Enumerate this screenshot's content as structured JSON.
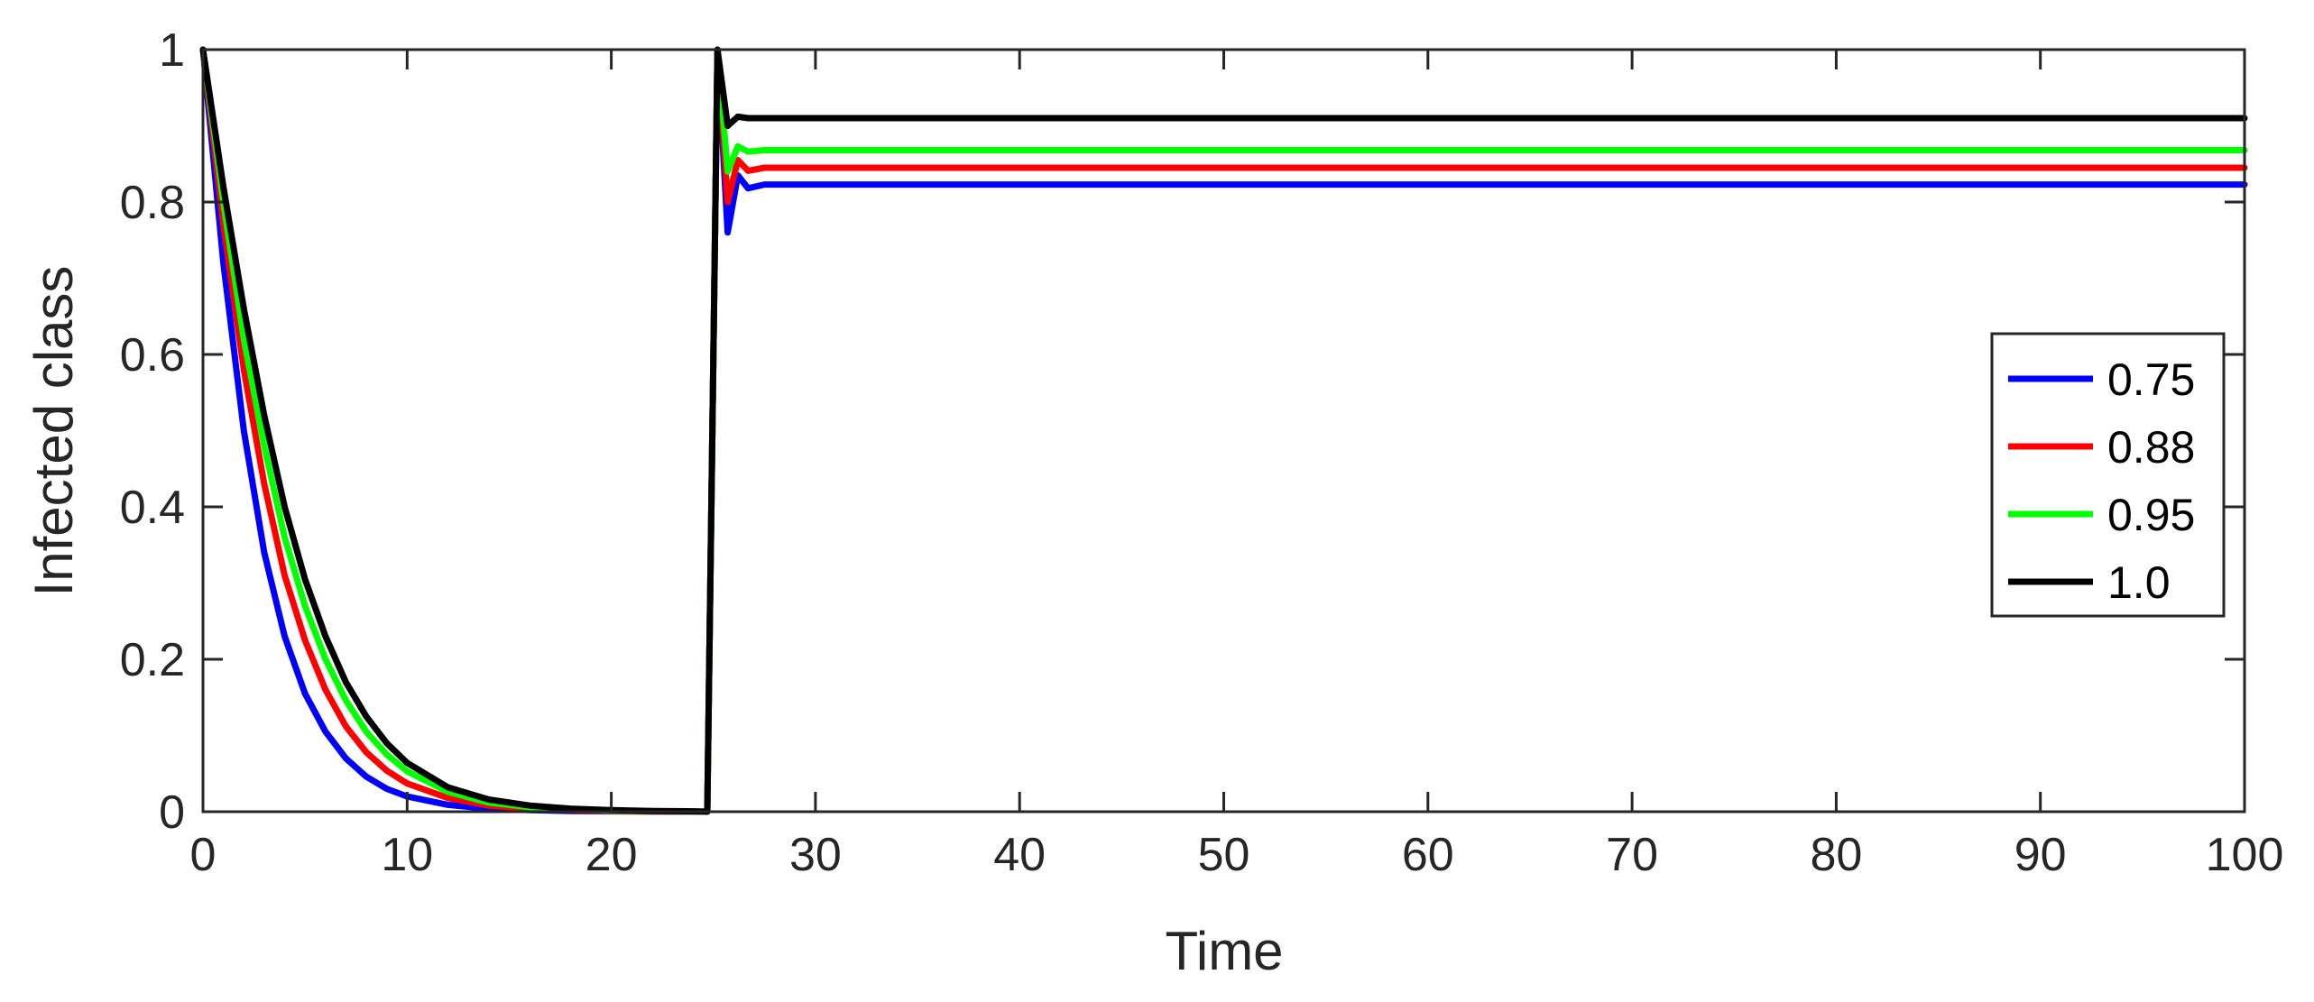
{
  "chart_data": {
    "type": "line",
    "title": "",
    "xlabel": "Time",
    "ylabel": "Infected class",
    "xlim": [
      0,
      100
    ],
    "ylim": [
      0,
      1
    ],
    "x_ticks": [
      "0",
      "10",
      "20",
      "30",
      "40",
      "50",
      "60",
      "70",
      "80",
      "90",
      "100"
    ],
    "y_ticks": [
      "0",
      "0.2",
      "0.4",
      "0.6",
      "0.8",
      "1"
    ],
    "grid": false,
    "legend_position": "right",
    "series": [
      {
        "name": "0.75",
        "color": "#0000ff",
        "x": [
          0,
          1,
          2,
          3,
          4,
          5,
          6,
          7,
          8,
          9,
          10,
          12,
          14,
          16,
          18,
          20,
          22,
          24,
          24.7,
          25.2,
          25.7,
          26.2,
          26.7,
          27.5,
          100
        ],
        "y": [
          1,
          0.72,
          0.5,
          0.34,
          0.23,
          0.155,
          0.105,
          0.07,
          0.046,
          0.03,
          0.02,
          0.009,
          0.004,
          0.002,
          0.001,
          0.0005,
          0.0002,
          0.0001,
          0,
          1,
          0.76,
          0.835,
          0.818,
          0.823,
          0.823
        ]
      },
      {
        "name": "0.88",
        "color": "#ff0000",
        "x": [
          0,
          1,
          2,
          3,
          4,
          5,
          6,
          7,
          8,
          9,
          10,
          12,
          14,
          16,
          18,
          20,
          22,
          24,
          24.7,
          25.2,
          25.7,
          26.2,
          26.7,
          27.5,
          100
        ],
        "y": [
          1,
          0.77,
          0.58,
          0.43,
          0.31,
          0.225,
          0.16,
          0.112,
          0.078,
          0.054,
          0.037,
          0.018,
          0.008,
          0.004,
          0.002,
          0.001,
          0.0004,
          0.0002,
          0,
          1,
          0.8,
          0.855,
          0.841,
          0.845,
          0.845
        ]
      },
      {
        "name": "0.95",
        "color": "#00ff00",
        "x": [
          0,
          1,
          2,
          3,
          4,
          5,
          6,
          7,
          8,
          9,
          10,
          12,
          14,
          16,
          18,
          20,
          22,
          24,
          24.7,
          25.2,
          25.7,
          26.2,
          26.7,
          27.5,
          100
        ],
        "y": [
          1,
          0.8,
          0.62,
          0.48,
          0.36,
          0.27,
          0.2,
          0.146,
          0.105,
          0.075,
          0.053,
          0.026,
          0.012,
          0.006,
          0.003,
          0.0015,
          0.0007,
          0.0003,
          0,
          1,
          0.84,
          0.873,
          0.866,
          0.868,
          0.868
        ]
      },
      {
        "name": "1.0",
        "color": "#000000",
        "x": [
          0,
          1,
          2,
          3,
          4,
          5,
          6,
          7,
          8,
          9,
          10,
          12,
          14,
          16,
          18,
          20,
          22,
          24,
          24.7,
          25.2,
          25.7,
          26.2,
          26.7,
          27.5,
          100
        ],
        "y": [
          1,
          0.82,
          0.66,
          0.52,
          0.4,
          0.305,
          0.23,
          0.17,
          0.125,
          0.09,
          0.064,
          0.032,
          0.016,
          0.008,
          0.004,
          0.002,
          0.001,
          0.0005,
          0,
          1,
          0.9,
          0.912,
          0.91,
          0.91,
          0.91
        ]
      }
    ]
  }
}
